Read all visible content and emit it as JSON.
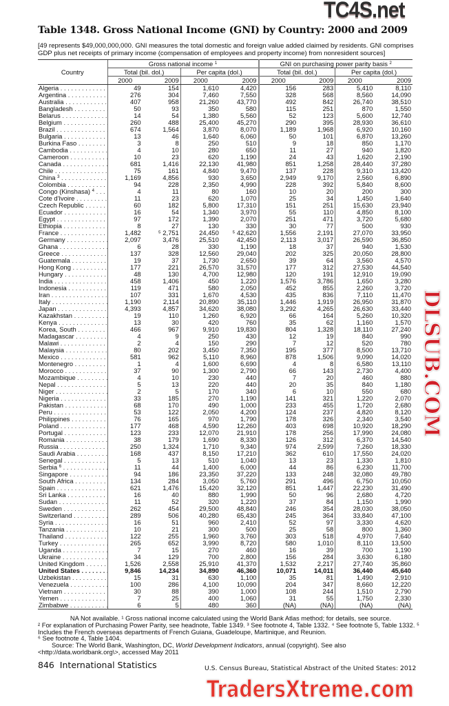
{
  "title": "Table 1348. Gross National Income (GNI) by Country: 2000 and 2009",
  "headnote": "[49 represents $49,000,000,000. GNI measures the total domestic and foreign value added claimed by residents. GNI comprises GDP plus net receipts of primary income (compensation of employees and property income) from nonresident sources]",
  "table": {
    "country_header": "Country",
    "group1": "Gross national income",
    "group1_note": "1",
    "group2": "GNI on purchasing power parity basis",
    "group2_note": "2",
    "sub_total": "Total (bil. dol.)",
    "sub_percap": "Per capita (dol.)",
    "years": [
      "2000",
      "2009",
      "2000",
      "2009",
      "2000",
      "2009",
      "2000",
      "2009"
    ],
    "rows": [
      {
        "name": "Algeria",
        "v": [
          "49",
          "154",
          "1,610",
          "4,420",
          "156",
          "283",
          "5,410",
          "8,110"
        ]
      },
      {
        "name": "Argentina",
        "v": [
          "276",
          "304",
          "7,460",
          "7,550",
          "328",
          "568",
          "8,560",
          "14,090"
        ]
      },
      {
        "name": "Australia",
        "v": [
          "407",
          "958",
          "21,260",
          "43,770",
          "492",
          "842",
          "26,740",
          "38,510"
        ]
      },
      {
        "name": "Bangladesh",
        "v": [
          "50",
          "93",
          "350",
          "580",
          "115",
          "251",
          "870",
          "1,550"
        ]
      },
      {
        "name": "Belarus",
        "v": [
          "14",
          "54",
          "1,380",
          "5,560",
          "52",
          "123",
          "5,600",
          "12,740"
        ]
      },
      {
        "name": "Belgium",
        "v": [
          "260",
          "488",
          "25,400",
          "45,270",
          "290",
          "395",
          "28,930",
          "36,610"
        ]
      },
      {
        "name": "Brazil",
        "v": [
          "674",
          "1,564",
          "3,870",
          "8,070",
          "1,189",
          "1,968",
          "6,920",
          "10,160"
        ]
      },
      {
        "name": "Bulgaria",
        "v": [
          "13",
          "46",
          "1,640",
          "6,060",
          "50",
          "101",
          "6,870",
          "13,260"
        ]
      },
      {
        "name": "Burkina Faso",
        "v": [
          "3",
          "8",
          "250",
          "510",
          "9",
          "18",
          "850",
          "1,170"
        ]
      },
      {
        "name": "Cambodia",
        "v": [
          "4",
          "10",
          "280",
          "650",
          "11",
          "27",
          "940",
          "1,820"
        ]
      },
      {
        "name": "Cameroon",
        "v": [
          "10",
          "23",
          "620",
          "1,190",
          "24",
          "43",
          "1,620",
          "2,190"
        ]
      },
      {
        "name": "Canada",
        "v": [
          "681",
          "1,416",
          "22,130",
          "41,980",
          "851",
          "1,258",
          "28,440",
          "37,280"
        ]
      },
      {
        "name": "Chile",
        "v": [
          "75",
          "161",
          "4,840",
          "9,470",
          "137",
          "228",
          "9,310",
          "13,420"
        ]
      },
      {
        "name": "China",
        "note": "3",
        "v": [
          "1,169",
          "4,856",
          "930",
          "3,650",
          "2,949",
          "9,170",
          "2,560",
          "6,890"
        ]
      },
      {
        "name": "Colombia",
        "v": [
          "94",
          "228",
          "2,350",
          "4,990",
          "228",
          "392",
          "5,840",
          "8,600"
        ]
      },
      {
        "name": "Congo (Kinshasa)",
        "note": "4",
        "v": [
          "4",
          "11",
          "80",
          "160",
          "10",
          "20",
          "200",
          "300"
        ]
      },
      {
        "name": "Cote d'Ivoire",
        "v": [
          "11",
          "23",
          "620",
          "1,070",
          "25",
          "34",
          "1,450",
          "1,640"
        ]
      },
      {
        "name": "Czech Republic",
        "v": [
          "60",
          "182",
          "5,800",
          "17,310",
          "151",
          "251",
          "15,630",
          "23,940"
        ]
      },
      {
        "name": "Ecuador",
        "v": [
          "16",
          "54",
          "1,340",
          "3,970",
          "55",
          "110",
          "4,850",
          "8,100"
        ]
      },
      {
        "name": "Egypt",
        "v": [
          "97",
          "172",
          "1,390",
          "2,070",
          "251",
          "471",
          "3,720",
          "5,680"
        ]
      },
      {
        "name": "Ethiopia",
        "v": [
          "8",
          "27",
          "130",
          "330",
          "30",
          "77",
          "500",
          "930"
        ]
      },
      {
        "name": "France",
        "v": [
          "1,482",
          "⁵ 2,751",
          "24,450",
          "⁵ 42,620",
          "1,556",
          "2,191",
          "27,070",
          "33,950"
        ]
      },
      {
        "name": "Germany",
        "v": [
          "2,097",
          "3,476",
          "25,510",
          "42,450",
          "2,113",
          "3,017",
          "26,590",
          "36,850"
        ]
      },
      {
        "name": "Ghana",
        "v": [
          "6",
          "28",
          "330",
          "1,190",
          "18",
          "37",
          "940",
          "1,530"
        ]
      },
      {
        "name": "Greece",
        "v": [
          "137",
          "328",
          "12,560",
          "29,040",
          "202",
          "325",
          "20,050",
          "28,800"
        ]
      },
      {
        "name": "Guatemala",
        "v": [
          "19",
          "37",
          "1,730",
          "2,650",
          "39",
          "64",
          "3,560",
          "4,570"
        ]
      },
      {
        "name": "Hong Kong",
        "v": [
          "177",
          "221",
          "26,570",
          "31,570",
          "177",
          "312",
          "27,530",
          "44,540"
        ]
      },
      {
        "name": "Hungary",
        "v": [
          "48",
          "130",
          "4,700",
          "12,980",
          "120",
          "191",
          "12,910",
          "19,090"
        ]
      },
      {
        "name": "India",
        "v": [
          "458",
          "1,406",
          "450",
          "1,220",
          "1,576",
          "3,786",
          "1,650",
          "3,280"
        ]
      },
      {
        "name": "Indonesia",
        "v": [
          "119",
          "471",
          "580",
          "2,050",
          "452",
          "855",
          "2,260",
          "3,720"
        ]
      },
      {
        "name": "Iran",
        "v": [
          "107",
          "331",
          "1,670",
          "4,530",
          "435",
          "836",
          "7,110",
          "11,470"
        ]
      },
      {
        "name": "Italy",
        "v": [
          "1,190",
          "2,114",
          "20,890",
          "35,110",
          "1,446",
          "1,919",
          "26,950",
          "31,870"
        ]
      },
      {
        "name": "Japan",
        "v": [
          "4,393",
          "4,857",
          "34,620",
          "38,080",
          "3,292",
          "4,265",
          "26,630",
          "33,440"
        ]
      },
      {
        "name": "Kazakhstan",
        "v": [
          "19",
          "110",
          "1,260",
          "6,920",
          "66",
          "164",
          "5,260",
          "10,320"
        ]
      },
      {
        "name": "Kenya",
        "v": [
          "13",
          "30",
          "420",
          "760",
          "35",
          "62",
          "1,160",
          "1,570"
        ]
      },
      {
        "name": "Korea, South",
        "v": [
          "466",
          "967",
          "9,910",
          "19,830",
          "804",
          "1,328",
          "18,110",
          "27,240"
        ]
      },
      {
        "name": "Madagascar",
        "v": [
          "4",
          "9",
          "250",
          "430",
          "12",
          "19",
          "840",
          "990"
        ]
      },
      {
        "name": "Malawi",
        "v": [
          "2",
          "4",
          "150",
          "290",
          "7",
          "12",
          "520",
          "780"
        ]
      },
      {
        "name": "Malaysia",
        "v": [
          "80",
          "202",
          "3,450",
          "7,350",
          "195",
          "377",
          "8,500",
          "13,710"
        ]
      },
      {
        "name": "Mexico",
        "v": [
          "581",
          "962",
          "5,110",
          "8,960",
          "878",
          "1,506",
          "9,090",
          "14,020"
        ]
      },
      {
        "name": "Montenegro",
        "v": [
          "1",
          "4",
          "1,600",
          "6,690",
          "4",
          "8",
          "6,580",
          "13,110"
        ]
      },
      {
        "name": "Morocco",
        "v": [
          "37",
          "90",
          "1,300",
          "2,790",
          "66",
          "143",
          "2,730",
          "4,400"
        ]
      },
      {
        "name": "Mozambique",
        "v": [
          "4",
          "10",
          "230",
          "440",
          "7",
          "20",
          "460",
          "880"
        ]
      },
      {
        "name": "Nepal",
        "v": [
          "5",
          "13",
          "220",
          "440",
          "20",
          "35",
          "840",
          "1,180"
        ]
      },
      {
        "name": "Niger",
        "v": [
          "2",
          "5",
          "170",
          "340",
          "6",
          "10",
          "550",
          "680"
        ]
      },
      {
        "name": "Nigeria",
        "v": [
          "33",
          "185",
          "270",
          "1,190",
          "141",
          "321",
          "1,220",
          "2,070"
        ]
      },
      {
        "name": "Pakistan",
        "v": [
          "68",
          "170",
          "490",
          "1,000",
          "233",
          "455",
          "1,720",
          "2,680"
        ]
      },
      {
        "name": "Peru",
        "v": [
          "53",
          "122",
          "2,050",
          "4,200",
          "124",
          "237",
          "4,820",
          "8,120"
        ]
      },
      {
        "name": "Philippines",
        "v": [
          "76",
          "165",
          "970",
          "1,790",
          "178",
          "326",
          "2,340",
          "3,540"
        ]
      },
      {
        "name": "Poland",
        "v": [
          "177",
          "468",
          "4,590",
          "12,260",
          "403",
          "698",
          "10,920",
          "18,290"
        ]
      },
      {
        "name": "Portugal",
        "v": [
          "123",
          "233",
          "12,070",
          "21,910",
          "178",
          "256",
          "17,990",
          "24,080"
        ]
      },
      {
        "name": "Romania",
        "v": [
          "38",
          "179",
          "1,690",
          "8,330",
          "126",
          "312",
          "6,370",
          "14,540"
        ]
      },
      {
        "name": "Russia",
        "v": [
          "250",
          "1,324",
          "1,710",
          "9,340",
          "974",
          "2,599",
          "7,260",
          "18,330"
        ]
      },
      {
        "name": "Saudi Arabia",
        "v": [
          "168",
          "437",
          "8,150",
          "17,210",
          "362",
          "610",
          "17,550",
          "24,020"
        ]
      },
      {
        "name": "Senegal",
        "v": [
          "5",
          "13",
          "510",
          "1,040",
          "13",
          "23",
          "1,330",
          "1,810"
        ]
      },
      {
        "name": "Serbia",
        "note": "6",
        "v": [
          "11",
          "44",
          "1,400",
          "6,000",
          "44",
          "86",
          "6,230",
          "11,700"
        ]
      },
      {
        "name": "Singapore",
        "v": [
          "94",
          "186",
          "23,350",
          "37,220",
          "133",
          "248",
          "32,080",
          "49,780"
        ]
      },
      {
        "name": "South Africa",
        "v": [
          "134",
          "284",
          "3,050",
          "5,760",
          "291",
          "496",
          "6,750",
          "10,050"
        ]
      },
      {
        "name": "Spain",
        "v": [
          "621",
          "1,476",
          "15,420",
          "32,120",
          "851",
          "1,447",
          "22,230",
          "31,490"
        ]
      },
      {
        "name": "Sri Lanka",
        "v": [
          "16",
          "40",
          "880",
          "1,990",
          "50",
          "96",
          "2,680",
          "4,720"
        ]
      },
      {
        "name": "Sudan",
        "v": [
          "11",
          "52",
          "320",
          "1,220",
          "37",
          "84",
          "1,150",
          "1,990"
        ]
      },
      {
        "name": "Sweden",
        "v": [
          "262",
          "454",
          "29,500",
          "48,840",
          "246",
          "354",
          "28,030",
          "38,050"
        ]
      },
      {
        "name": "Switzerland",
        "v": [
          "289",
          "506",
          "40,280",
          "65,430",
          "245",
          "364",
          "33,840",
          "47,100"
        ]
      },
      {
        "name": "Syria",
        "v": [
          "16",
          "51",
          "960",
          "2,410",
          "52",
          "97",
          "3,330",
          "4,620"
        ]
      },
      {
        "name": "Tanzania",
        "v": [
          "10",
          "21",
          "300",
          "500",
          "25",
          "58",
          "800",
          "1,360"
        ]
      },
      {
        "name": "Thailand",
        "v": [
          "122",
          "255",
          "1,960",
          "3,760",
          "303",
          "518",
          "4,970",
          "7,640"
        ]
      },
      {
        "name": "Turkey",
        "v": [
          "265",
          "652",
          "3,990",
          "8,720",
          "580",
          "1,010",
          "8,110",
          "13,500"
        ]
      },
      {
        "name": "Uganda",
        "v": [
          "7",
          "15",
          "270",
          "460",
          "16",
          "39",
          "700",
          "1,190"
        ]
      },
      {
        "name": "Ukraine",
        "v": [
          "34",
          "129",
          "700",
          "2,800",
          "156",
          "284",
          "3,630",
          "6,180"
        ]
      },
      {
        "name": "United Kingdom",
        "v": [
          "1,526",
          "2,558",
          "25,910",
          "41,370",
          "1,532",
          "2,217",
          "27,740",
          "35,860"
        ]
      },
      {
        "name": "United States",
        "bold": true,
        "v": [
          "9,846",
          "14,234",
          "34,890",
          "46,360",
          "10,071",
          "14,011",
          "36,440",
          "45,640"
        ]
      },
      {
        "name": "Uzbekistan",
        "v": [
          "15",
          "31",
          "630",
          "1,100",
          "35",
          "81",
          "1,490",
          "2,910"
        ]
      },
      {
        "name": "Venezuela",
        "v": [
          "100",
          "286",
          "4,100",
          "10,090",
          "204",
          "347",
          "8,660",
          "12,220"
        ]
      },
      {
        "name": "Vietnam",
        "v": [
          "30",
          "88",
          "390",
          "1,000",
          "108",
          "244",
          "1,510",
          "2,790"
        ]
      },
      {
        "name": "Yemen",
        "v": [
          "7",
          "25",
          "400",
          "1,060",
          "31",
          "55",
          "1,750",
          "2,330"
        ]
      },
      {
        "name": "Zimbabwe",
        "v": [
          "6",
          "5",
          "480",
          "360",
          "(NA)",
          "(NA)",
          "(NA)",
          "(NA)"
        ]
      }
    ]
  },
  "footnotes": {
    "line1": "NA Not available. ¹ Gross national income calculated using the World Bank Atlas method; for details, see source.",
    "line2": "² For explanation of Purchasing Power Parity, see headnote, Table 1349. ³ See footnote 4, Table 1332. ⁴ See footnote 5, Table 1332. ⁵ Includes the French overseas departments of French Guiana, Guadeloupe, Martinique, and Reunion.",
    "line3": "⁶ See footnote 4, Table 1404.",
    "source_prefix": "Source: The World Bank, Washington, DC, ",
    "source_title": "World Development Indicators",
    "source_suffix": ", annual (copyright). See also <http://data.worldbank.org\\>, accessed May 2011"
  },
  "page_footer": {
    "page_label": "846  International Statistics",
    "credit": "U.S. Census Bureau, Statistical Abstract of the United States: 2012"
  },
  "watermarks": {
    "top": "TC4S.net",
    "middle": "DLSUB.COM",
    "bottom": "TradersXtreme.com"
  }
}
